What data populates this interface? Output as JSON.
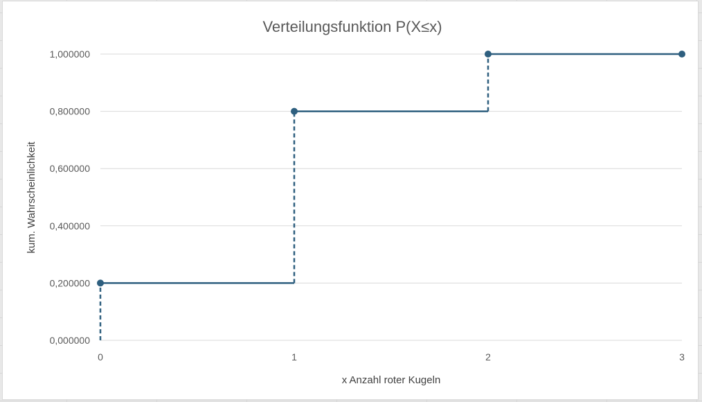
{
  "chart_data": {
    "type": "line",
    "subtype": "step",
    "title": "Verteilungsfunktion P(X≤x)",
    "xlabel": "x Anzahl roter Kugeln",
    "ylabel": "kum. Wahrscheinlichkeit",
    "x_ticks": [
      "0",
      "1",
      "2",
      "3"
    ],
    "y_ticks": [
      "0,000000",
      "0,200000",
      "0,400000",
      "0,600000",
      "0,800000",
      "1,000000"
    ],
    "xlim": [
      0,
      3
    ],
    "ylim": [
      0,
      1
    ],
    "grid": "horizontal",
    "series": [
      {
        "x": [
          0,
          1,
          2,
          3
        ],
        "y": [
          0.2,
          0.8,
          1.0,
          1.0
        ]
      }
    ],
    "colors": {
      "series": "#2e5f7f",
      "grid": "#d9d9d9"
    }
  }
}
